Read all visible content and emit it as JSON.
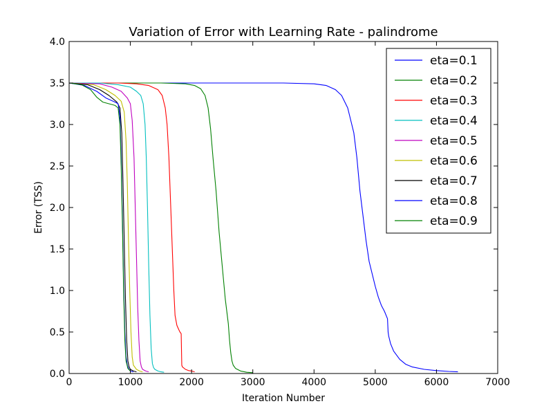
{
  "chart_data": {
    "type": "line",
    "title": "Variation of Error with Learning Rate - palindrome",
    "xlabel": "Iteration Number",
    "ylabel": "Error (TSS)",
    "xlim": [
      0,
      7000
    ],
    "ylim": [
      0,
      4.0
    ],
    "xticks": [
      "0",
      "1000",
      "2000",
      "3000",
      "4000",
      "5000",
      "6000",
      "7000"
    ],
    "yticks": [
      "0.0",
      "0.5",
      "1.0",
      "1.5",
      "2.0",
      "2.5",
      "3.0",
      "3.5",
      "4.0"
    ],
    "grid": false,
    "legend_position": "top-right",
    "series": [
      {
        "name": "eta=0.1",
        "color": "#0000ff",
        "x": [
          0,
          500,
          1500,
          2500,
          3500,
          4000,
          4200,
          4350,
          4450,
          4550,
          4650,
          4700,
          4750,
          4800,
          4850,
          4900,
          4950,
          5000,
          5050,
          5100,
          5150,
          5200,
          5210,
          5220,
          5250,
          5300,
          5400,
          5500,
          5600,
          5800,
          6000,
          6200,
          6350
        ],
        "y": [
          3.5,
          3.5,
          3.5,
          3.5,
          3.5,
          3.49,
          3.47,
          3.42,
          3.35,
          3.2,
          2.9,
          2.6,
          2.2,
          1.9,
          1.6,
          1.35,
          1.2,
          1.05,
          0.92,
          0.82,
          0.75,
          0.66,
          0.5,
          0.45,
          0.36,
          0.27,
          0.17,
          0.11,
          0.08,
          0.05,
          0.035,
          0.025,
          0.02
        ]
      },
      {
        "name": "eta=0.2",
        "color": "#008000",
        "x": [
          0,
          1000,
          1500,
          1900,
          2050,
          2150,
          2220,
          2270,
          2310,
          2350,
          2400,
          2450,
          2500,
          2550,
          2600,
          2620,
          2640,
          2660,
          2680,
          2720,
          2800,
          2900,
          3000
        ],
        "y": [
          3.5,
          3.5,
          3.5,
          3.49,
          3.47,
          3.43,
          3.35,
          3.2,
          2.95,
          2.6,
          2.2,
          1.7,
          1.3,
          0.9,
          0.6,
          0.4,
          0.25,
          0.15,
          0.1,
          0.06,
          0.03,
          0.015,
          0.01
        ]
      },
      {
        "name": "eta=0.3",
        "color": "#ff0000",
        "x": [
          0,
          800,
          1100,
          1300,
          1450,
          1520,
          1570,
          1600,
          1630,
          1660,
          1690,
          1710,
          1730,
          1760,
          1790,
          1810,
          1830,
          1840,
          1850,
          1900,
          1950,
          2000,
          2050
        ],
        "y": [
          3.5,
          3.5,
          3.49,
          3.47,
          3.42,
          3.35,
          3.2,
          3.0,
          2.6,
          2.0,
          1.4,
          1.0,
          0.7,
          0.58,
          0.53,
          0.5,
          0.48,
          0.1,
          0.08,
          0.05,
          0.035,
          0.03,
          0.02
        ]
      },
      {
        "name": "eta=0.4",
        "color": "#00bfbf",
        "x": [
          0,
          500,
          800,
          1000,
          1100,
          1170,
          1210,
          1240,
          1260,
          1280,
          1300,
          1320,
          1340,
          1360,
          1380,
          1400,
          1450,
          1500,
          1550
        ],
        "y": [
          3.5,
          3.5,
          3.48,
          3.45,
          3.4,
          3.35,
          3.25,
          3.0,
          2.6,
          2.0,
          1.3,
          0.7,
          0.3,
          0.12,
          0.07,
          0.05,
          0.03,
          0.02,
          0.015
        ]
      },
      {
        "name": "eta=0.5",
        "color": "#bf00bf",
        "x": [
          0,
          500,
          700,
          850,
          950,
          1000,
          1030,
          1060,
          1080,
          1100,
          1120,
          1140,
          1160,
          1180,
          1200,
          1250,
          1300
        ],
        "y": [
          3.5,
          3.49,
          3.45,
          3.4,
          3.32,
          3.25,
          3.05,
          2.6,
          2.0,
          1.4,
          0.8,
          0.4,
          0.15,
          0.08,
          0.05,
          0.03,
          0.02
        ]
      },
      {
        "name": "eta=0.6",
        "color": "#bfbf00",
        "x": [
          0,
          400,
          600,
          750,
          850,
          900,
          930,
          950,
          970,
          990,
          1010,
          1030,
          1050,
          1100,
          1150,
          1200
        ],
        "y": [
          3.5,
          3.48,
          3.42,
          3.35,
          3.28,
          3.15,
          2.8,
          2.3,
          1.6,
          1.0,
          0.5,
          0.2,
          0.1,
          0.05,
          0.03,
          0.02
        ]
      },
      {
        "name": "eta=0.7",
        "color": "#000000",
        "x": [
          0,
          300,
          500,
          650,
          780,
          830,
          860,
          880,
          900,
          920,
          940,
          960,
          980,
          1000,
          1050,
          1100
        ],
        "y": [
          3.5,
          3.48,
          3.42,
          3.35,
          3.27,
          3.2,
          2.9,
          2.3,
          1.6,
          0.9,
          0.4,
          0.15,
          0.08,
          0.05,
          0.03,
          0.02
        ]
      },
      {
        "name": "eta=0.8",
        "color": "#0000ff",
        "x": [
          0,
          250,
          450,
          600,
          750,
          800,
          830,
          850,
          870,
          890,
          910,
          930,
          950,
          970,
          1000,
          1050
        ],
        "y": [
          3.5,
          3.47,
          3.4,
          3.32,
          3.27,
          3.25,
          3.1,
          2.6,
          1.9,
          1.1,
          0.5,
          0.2,
          0.1,
          0.06,
          0.03,
          0.02
        ]
      },
      {
        "name": "eta=0.9",
        "color": "#008000",
        "x": [
          0,
          200,
          350,
          450,
          550,
          650,
          750,
          800,
          830,
          850,
          870,
          890,
          910,
          930,
          960,
          1000
        ],
        "y": [
          3.5,
          3.48,
          3.42,
          3.33,
          3.27,
          3.25,
          3.23,
          3.2,
          3.0,
          2.5,
          1.8,
          1.0,
          0.4,
          0.15,
          0.06,
          0.03
        ]
      }
    ]
  }
}
